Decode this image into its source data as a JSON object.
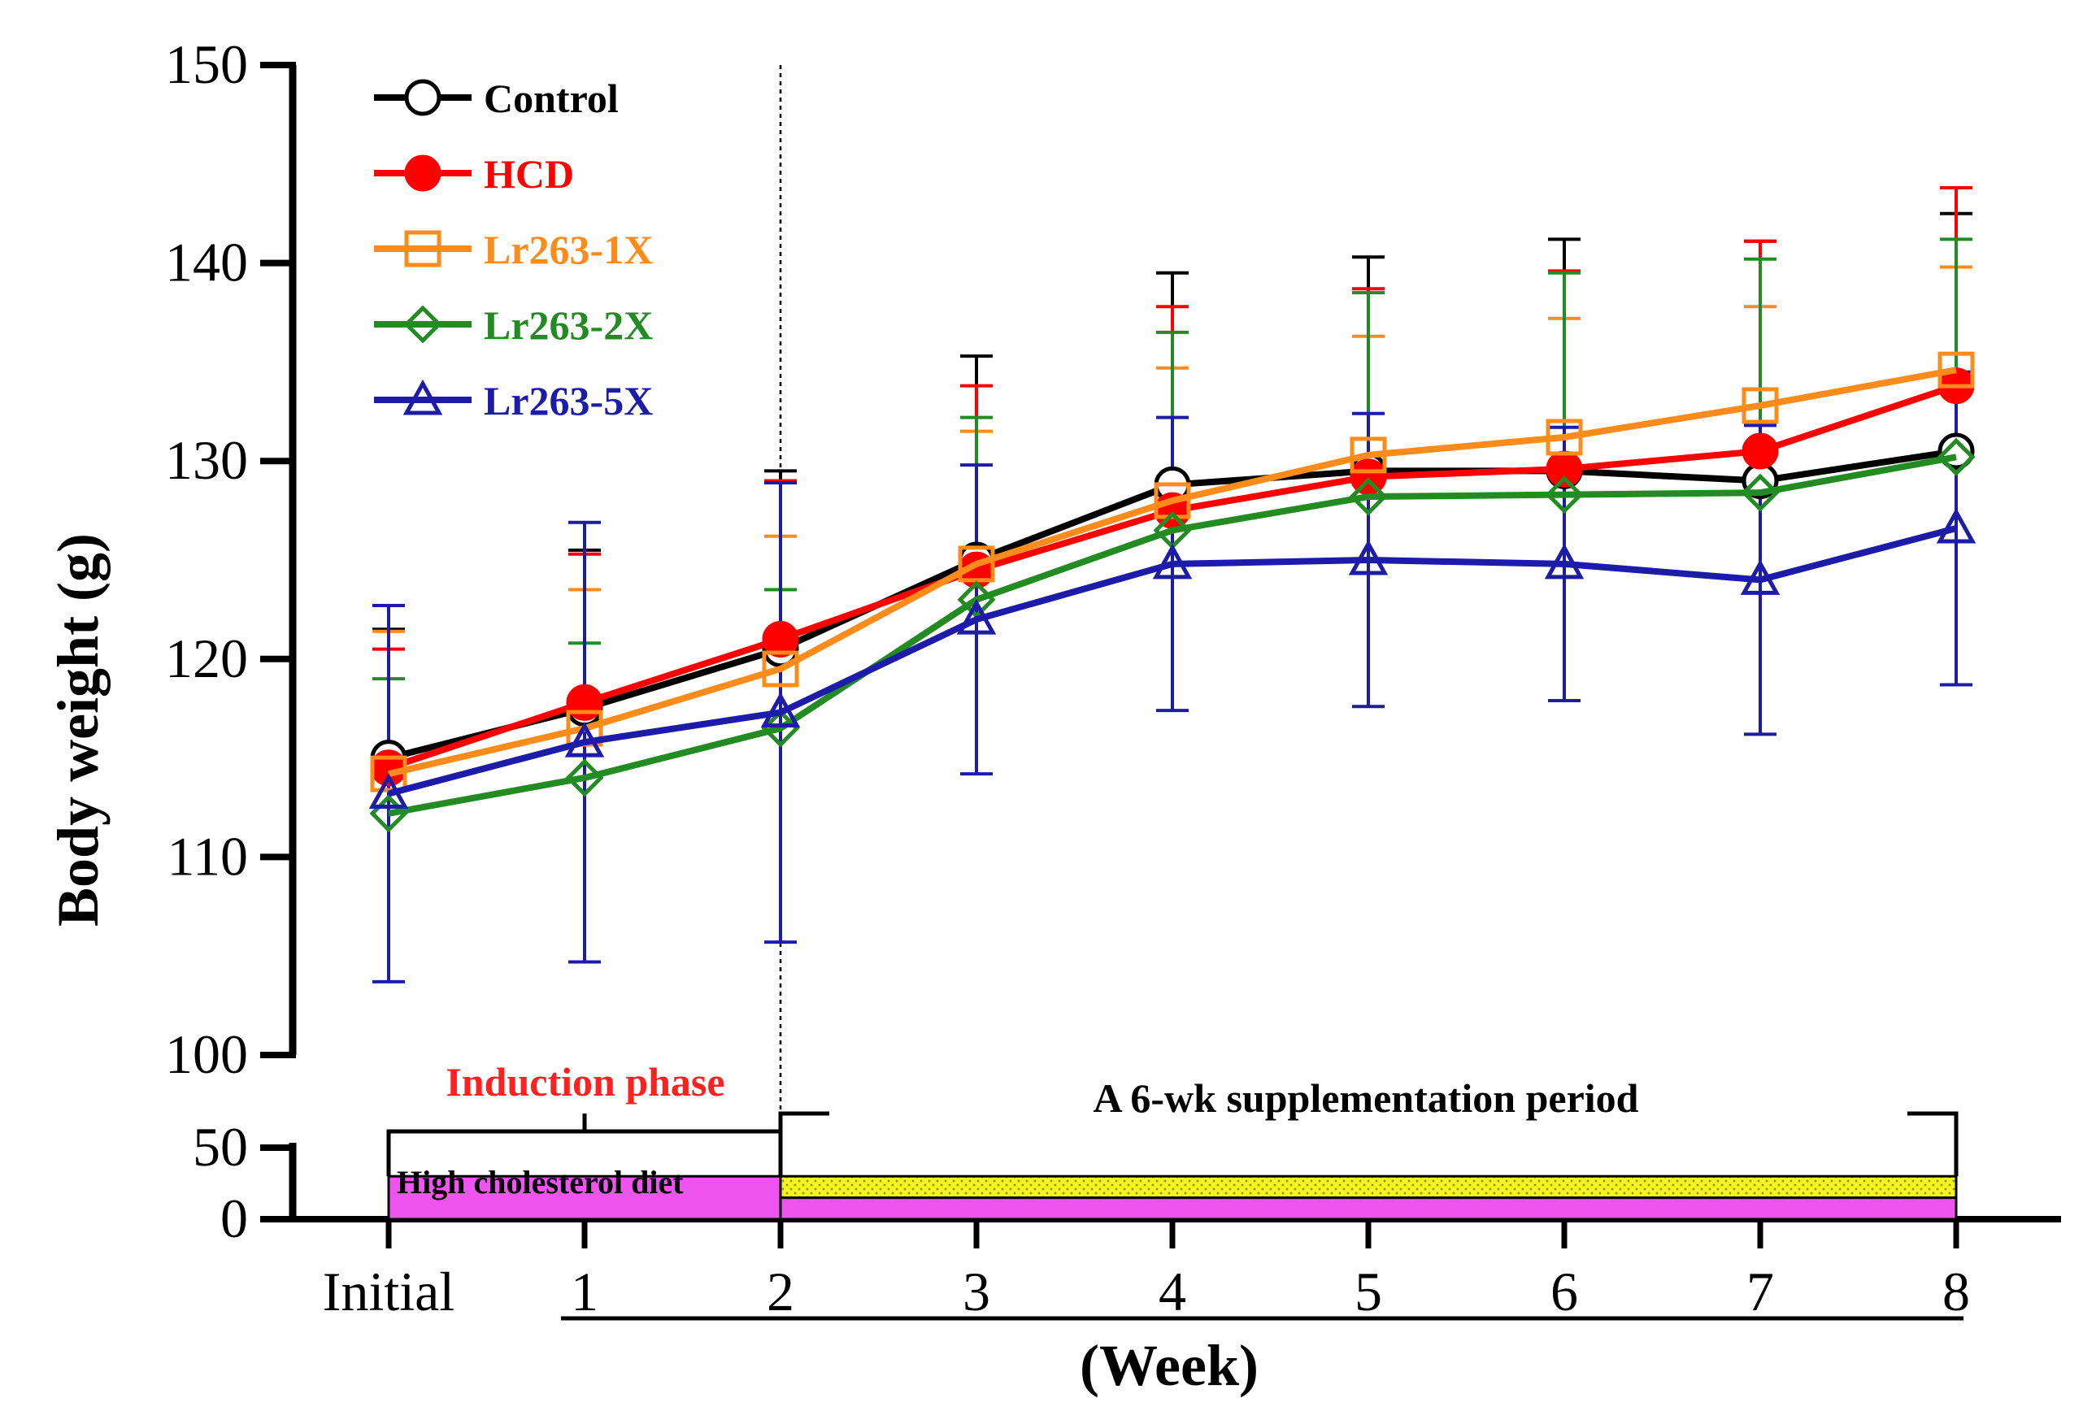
{
  "chart_data": {
    "type": "line",
    "ylabel": "Body weight (g)",
    "xlabel": "(Week)",
    "categories": [
      "Initial",
      "1",
      "2",
      "3",
      "4",
      "5",
      "6",
      "7",
      "8"
    ],
    "ylim": [
      100,
      150
    ],
    "yticks": [
      100,
      110,
      120,
      130,
      140,
      150
    ],
    "lower_axis": {
      "ylim": [
        0,
        50
      ],
      "yticks": [
        0,
        50
      ]
    },
    "series": [
      {
        "name": "Control",
        "color": "#000000",
        "marker": "open-circle",
        "values": [
          115.0,
          117.5,
          120.5,
          125.0,
          128.8,
          129.5,
          129.5,
          129.0,
          130.5
        ],
        "errors": [
          6.5,
          8.0,
          9.0,
          10.3,
          10.7,
          10.8,
          11.7,
          12.1,
          12.0
        ]
      },
      {
        "name": "HCD",
        "color": "#ff0000",
        "marker": "filled-circle",
        "values": [
          114.5,
          117.8,
          121.0,
          124.5,
          127.5,
          129.2,
          129.6,
          130.5,
          133.8
        ],
        "errors": [
          6.0,
          7.5,
          8.0,
          9.3,
          10.3,
          9.5,
          10.0,
          10.6,
          10.0
        ]
      },
      {
        "name": "Lr263-1X",
        "color": "#ff8c1a",
        "marker": "open-square",
        "values": [
          114.2,
          116.5,
          119.5,
          124.8,
          128.0,
          130.3,
          131.2,
          132.8,
          134.6
        ],
        "errors": [
          7.2,
          7.0,
          6.7,
          6.7,
          6.7,
          6.0,
          6.0,
          5.0,
          5.2
        ]
      },
      {
        "name": "Lr263-2X",
        "color": "#228b22",
        "marker": "open-diamond",
        "values": [
          112.2,
          114.0,
          116.5,
          123.0,
          126.5,
          128.2,
          128.3,
          128.4,
          130.2
        ],
        "errors": [
          6.8,
          6.8,
          7.0,
          9.2,
          10.0,
          10.3,
          11.2,
          11.8,
          11.0
        ]
      },
      {
        "name": "Lr263-5X",
        "color": "#1c1ca8",
        "marker": "open-triangle",
        "values": [
          113.2,
          115.8,
          117.3,
          122.0,
          124.8,
          125.0,
          124.8,
          124.0,
          126.6
        ],
        "errors": [
          9.5,
          11.1,
          11.6,
          7.8,
          7.4,
          7.4,
          6.9,
          7.8,
          7.9
        ]
      }
    ],
    "annotations": {
      "induction_label": "Induction phase",
      "supplement_label": "A 6-wk supplementation period",
      "diet_label": "High cholesterol diet"
    },
    "colors": {
      "diet_bar": "#ee55ee",
      "supplement_bar": "#f5f51e",
      "induction_text": "#ff2020"
    }
  }
}
